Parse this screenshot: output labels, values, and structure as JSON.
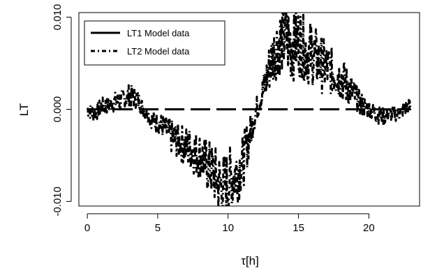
{
  "chart_data": {
    "type": "line",
    "xlabel": "τ[h]",
    "ylabel": "LT",
    "xlim": [
      -0.6,
      23.6
    ],
    "ylim": [
      -0.0105,
      0.0105
    ],
    "x_ticks": [
      0,
      5,
      10,
      15,
      20
    ],
    "x_tick_labels": [
      "0",
      "5",
      "10",
      "15",
      "20"
    ],
    "y_ticks": [
      -0.01,
      0.0,
      0.01
    ],
    "y_tick_labels": [
      "-0.010",
      "0.000",
      "0.010"
    ],
    "grid": false,
    "legend_position": "top-left",
    "series": [
      {
        "name": "LT1 Model data",
        "style": "longdash",
        "color": "#000000",
        "x": [
          0,
          23
        ],
        "y": [
          0.0,
          0.0
        ]
      },
      {
        "name": "LT2 Model data",
        "style": "dashdot",
        "color": "#000000",
        "x": [
          0,
          0.5,
          1,
          1.5,
          2,
          2.5,
          3,
          3.5,
          4,
          4.5,
          5,
          5.5,
          6,
          6.5,
          7,
          7.5,
          8,
          8.5,
          9,
          9.5,
          10,
          10.5,
          11,
          11.5,
          12,
          12.5,
          13,
          13.5,
          14,
          14.5,
          15,
          15.5,
          16,
          16.5,
          17,
          17.5,
          18,
          18.5,
          19,
          19.5,
          20,
          20.5,
          21,
          21.5,
          22,
          22.5,
          23
        ],
        "y": [
          0.0,
          -0.0005,
          0.0003,
          0.0005,
          0.0008,
          0.001,
          0.0015,
          0.0012,
          0.0,
          -0.001,
          -0.0015,
          -0.002,
          -0.003,
          -0.0035,
          -0.004,
          -0.0045,
          -0.005,
          -0.006,
          -0.007,
          -0.0085,
          -0.008,
          -0.007,
          -0.006,
          -0.003,
          0.0,
          0.002,
          0.005,
          0.007,
          0.008,
          0.007,
          0.0075,
          0.0065,
          0.006,
          0.005,
          0.0045,
          0.004,
          0.0035,
          0.0025,
          0.0015,
          0.0005,
          0.0,
          -0.0005,
          -0.0008,
          -0.0005,
          -0.0005,
          0.0,
          0.0005
        ],
        "noise_amplitude": [
          0.0005,
          0.0006,
          0.0006,
          0.0006,
          0.0007,
          0.0008,
          0.0008,
          0.0007,
          0.0005,
          0.0006,
          0.0008,
          0.0008,
          0.0012,
          0.0012,
          0.0014,
          0.0016,
          0.0016,
          0.0018,
          0.002,
          0.0024,
          0.0024,
          0.0022,
          0.002,
          0.0014,
          0.0008,
          0.0012,
          0.0018,
          0.0022,
          0.0028,
          0.0026,
          0.0024,
          0.0024,
          0.0022,
          0.002,
          0.0018,
          0.0016,
          0.0016,
          0.0014,
          0.001,
          0.0008,
          0.0006,
          0.0006,
          0.0006,
          0.0005,
          0.0005,
          0.0005,
          0.0005
        ]
      }
    ]
  }
}
